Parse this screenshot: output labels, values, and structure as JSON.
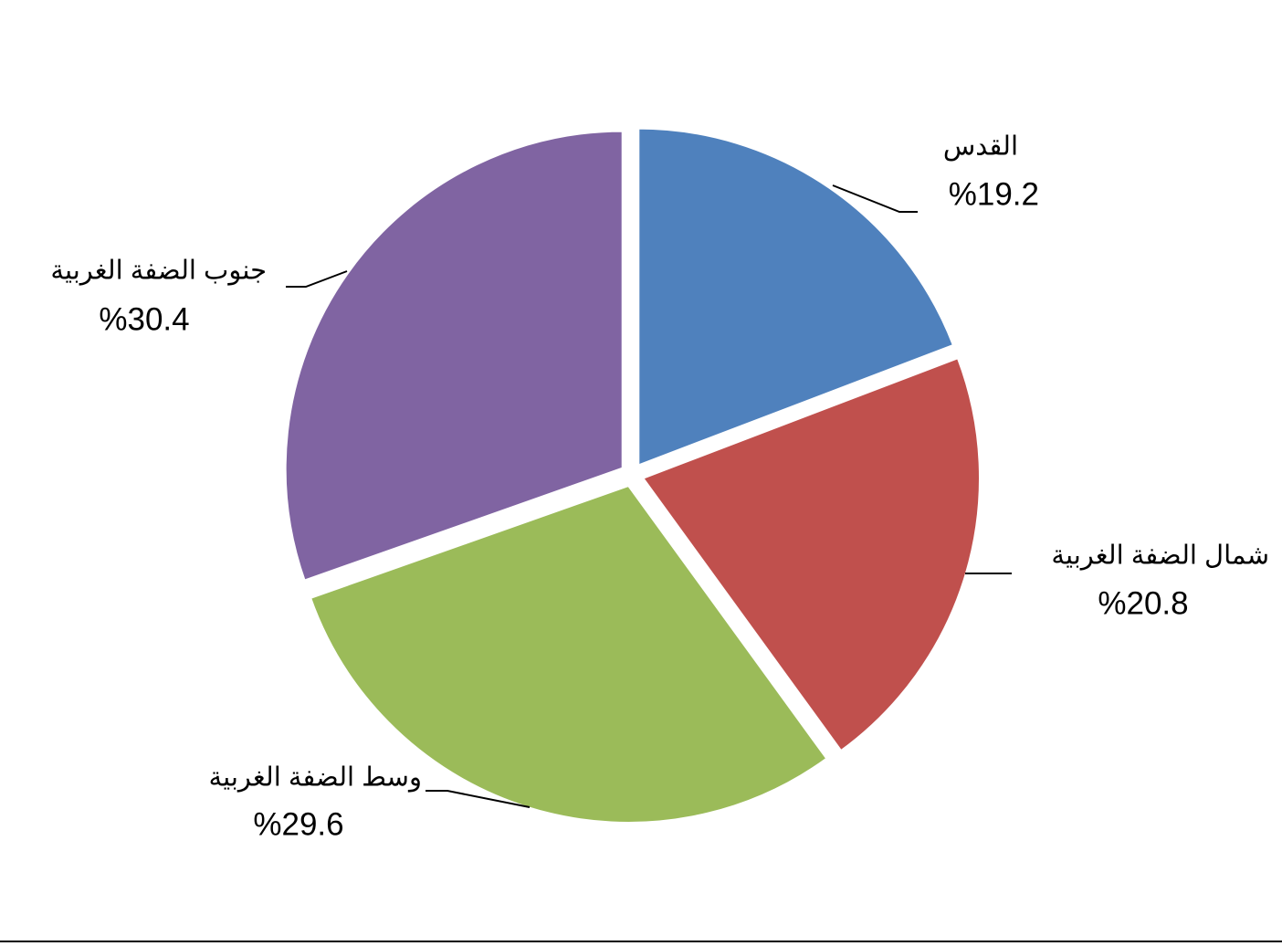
{
  "chart_data": {
    "type": "pie",
    "categories": [
      "القدس",
      "شمال الضفة الغربية",
      "وسط الضفة الغربية",
      "جنوب الضفة الغربية"
    ],
    "values": [
      19.2,
      20.8,
      29.6,
      30.4
    ],
    "value_labels": [
      "%19.2",
      "%20.8",
      "%29.6",
      "%30.4"
    ],
    "colors": [
      "#4f81bd",
      "#c0504d",
      "#9bbb59",
      "#8064a2"
    ]
  }
}
